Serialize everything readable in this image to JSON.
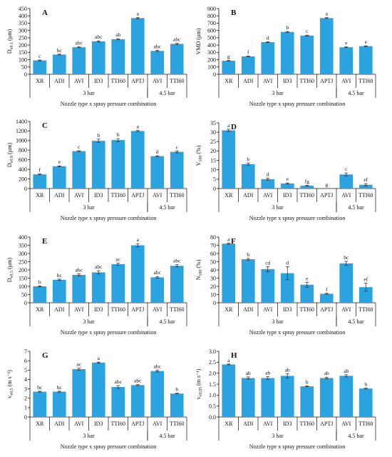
{
  "chart_data": [
    {
      "type": "bar",
      "panel": "A",
      "ylabel": "D_v0.1 (µm)",
      "ylim": [
        0,
        450
      ],
      "ystep": 50,
      "categories": [
        "XR",
        "ADI",
        "AVI",
        "ID3",
        "TTI60",
        "APTJ",
        "AVI",
        "TTI60"
      ],
      "groups": [
        {
          "label": "3 bar",
          "span": [
            0,
            5
          ]
        },
        {
          "label": "4.5 bar",
          "span": [
            6,
            7
          ]
        }
      ],
      "xlabel": "Nozzle type x spray pressure combination",
      "values": [
        95,
        135,
        185,
        225,
        240,
        385,
        160,
        208
      ],
      "errors": [
        3,
        3,
        4,
        4,
        4,
        5,
        4,
        4
      ],
      "letters": [
        "c",
        "bc",
        "abc",
        "abc",
        "ab",
        "a",
        "abc",
        "abc"
      ]
    },
    {
      "type": "bar",
      "panel": "B",
      "ylabel": "VMD (µm)",
      "ylim": [
        0,
        900
      ],
      "ystep": 100,
      "categories": [
        "XR",
        "ADI",
        "AVI",
        "ID3",
        "TTI60",
        "APTJ",
        "AVI",
        "TTI60"
      ],
      "groups": [
        {
          "label": "3 bar",
          "span": [
            0,
            5
          ]
        },
        {
          "label": "4.5 bar",
          "span": [
            6,
            7
          ]
        }
      ],
      "xlabel": "Nozzle type x spray pressure combination",
      "values": [
        185,
        245,
        440,
        580,
        530,
        770,
        370,
        385
      ],
      "errors": [
        4,
        4,
        5,
        6,
        6,
        6,
        5,
        5
      ],
      "letters": [
        "g",
        "f",
        "d",
        "b",
        "c",
        "a",
        "e",
        "e"
      ]
    },
    {
      "type": "bar",
      "panel": "C",
      "ylabel": "D_v0.9 (µm)",
      "ylim": [
        0,
        1400
      ],
      "ystep": 200,
      "categories": [
        "XR",
        "ADI",
        "AVI",
        "ID3",
        "TTI60",
        "APTJ",
        "AVI",
        "TTI60"
      ],
      "groups": [
        {
          "label": "3 bar",
          "span": [
            0,
            5
          ]
        },
        {
          "label": "4.5 bar",
          "span": [
            6,
            7
          ]
        }
      ],
      "xlabel": "Nozzle type x spray pressure combination",
      "values": [
        295,
        465,
        780,
        995,
        1010,
        1200,
        675,
        765
      ],
      "errors": [
        8,
        8,
        10,
        35,
        30,
        12,
        10,
        20
      ],
      "letters": [
        "f",
        "e",
        "c",
        "b",
        "b",
        "a",
        "d",
        "c"
      ]
    },
    {
      "type": "bar",
      "panel": "D",
      "ylabel": "V_100 (%)",
      "ylim": [
        0,
        35
      ],
      "ystep": 5,
      "categories": [
        "XR",
        "ADI",
        "AVI",
        "ID3",
        "TTI60",
        "APTJ",
        "AVI",
        "TTI60"
      ],
      "groups": [
        {
          "label": "3 bar",
          "span": [
            0,
            5
          ]
        },
        {
          "label": "4.5 bar",
          "span": [
            6,
            7
          ]
        }
      ],
      "xlabel": "Nozzle type x spray pressure combination",
      "values": [
        31,
        13,
        5,
        2.7,
        1.5,
        0,
        7.5,
        2
      ],
      "errors": [
        0.6,
        0.6,
        0.5,
        0.3,
        0.2,
        0,
        0.8,
        0.6
      ],
      "letters": [
        "a",
        "b",
        "d",
        "e",
        "fg",
        "g",
        "c",
        "ef"
      ]
    },
    {
      "type": "bar",
      "panel": "E",
      "ylabel": "D_v0.5 (µm)",
      "ylim": [
        0,
        400
      ],
      "ystep": 50,
      "categories": [
        "XR",
        "ADI",
        "AVI",
        "ID3",
        "TTI60",
        "APTJ",
        "AVI",
        "TTI60"
      ],
      "groups": [
        {
          "label": "3 bar",
          "span": [
            0,
            5
          ]
        },
        {
          "label": "4.5 bar",
          "span": [
            6,
            7
          ]
        }
      ],
      "xlabel": "Nozzle type x spray pressure combination",
      "values": [
        100,
        140,
        170,
        185,
        235,
        350,
        155,
        225
      ],
      "errors": [
        3,
        4,
        7,
        10,
        6,
        10,
        5,
        7
      ],
      "letters": [
        "b",
        "bc",
        "abc",
        "abc",
        "ac",
        "a",
        "abc",
        "abc"
      ]
    },
    {
      "type": "bar",
      "panel": "F",
      "ylabel": "N_100 (%)",
      "ylim": [
        0,
        80
      ],
      "ystep": 10,
      "categories": [
        "XR",
        "ADI",
        "AVI",
        "ID3",
        "TTI60",
        "APTJ",
        "AVI",
        "TTI60"
      ],
      "groups": [
        {
          "label": "3 bar",
          "span": [
            0,
            5
          ]
        },
        {
          "label": "4.5 bar",
          "span": [
            6,
            7
          ]
        }
      ],
      "xlabel": "Nozzle type x spray pressure combination",
      "values": [
        72,
        53,
        41,
        36,
        22,
        11,
        48,
        19
      ],
      "errors": [
        0.8,
        1,
        3,
        8,
        3,
        0.5,
        2.5,
        5
      ],
      "letters": [
        "a",
        "b",
        "cd",
        "d",
        "e",
        "f",
        "bc",
        "ef"
      ]
    },
    {
      "type": "bar",
      "panel": "G",
      "ylabel": "v_v0.5 (m s⁻¹)",
      "ylim": [
        0,
        7
      ],
      "ystep": 1,
      "categories": [
        "XR",
        "ADI",
        "AVI",
        "ID3",
        "TTI60",
        "APTJ",
        "AVI",
        "TTI60"
      ],
      "groups": [
        {
          "label": "3 bar",
          "span": [
            0,
            5
          ]
        },
        {
          "label": "4.5 bar",
          "span": [
            6,
            7
          ]
        }
      ],
      "xlabel": "Nozzle type x spray pressure combination",
      "values": [
        2.7,
        2.7,
        5.1,
        5.8,
        3.2,
        3.4,
        4.9,
        2.5
      ],
      "errors": [
        0.05,
        0.05,
        0.1,
        0.05,
        0.15,
        0.05,
        0.1,
        0.05
      ],
      "letters": [
        "bc",
        "bc",
        "ac",
        "a",
        "abc",
        "abc",
        "abc",
        "b"
      ]
    },
    {
      "type": "bar",
      "panel": "H",
      "ylabel": "v_v0.95 (m s⁻¹)",
      "ylim": [
        0,
        3.0
      ],
      "ystep": 0.5,
      "categories": [
        "XR",
        "ADI",
        "AVI",
        "ID3",
        "TTI60",
        "APTJ",
        "AVI",
        "TTI60"
      ],
      "groups": [
        {
          "label": "3 bar",
          "span": [
            0,
            5
          ]
        },
        {
          "label": "4.5 bar",
          "span": [
            6,
            7
          ]
        }
      ],
      "xlabel": "Nozzle type x spray pressure combination",
      "values": [
        2.4,
        1.78,
        1.78,
        1.88,
        1.4,
        1.78,
        1.88,
        1.3
      ],
      "errors": [
        0.02,
        0.05,
        0.06,
        0.1,
        0.02,
        0.04,
        0.05,
        0.02
      ],
      "letters": [
        "a",
        "ab",
        "ab",
        "ab",
        "b",
        "ab",
        "ab",
        "b"
      ]
    }
  ],
  "colors": {
    "bar": "#2aa3e0",
    "axis": "#111111",
    "error": "#222222"
  }
}
